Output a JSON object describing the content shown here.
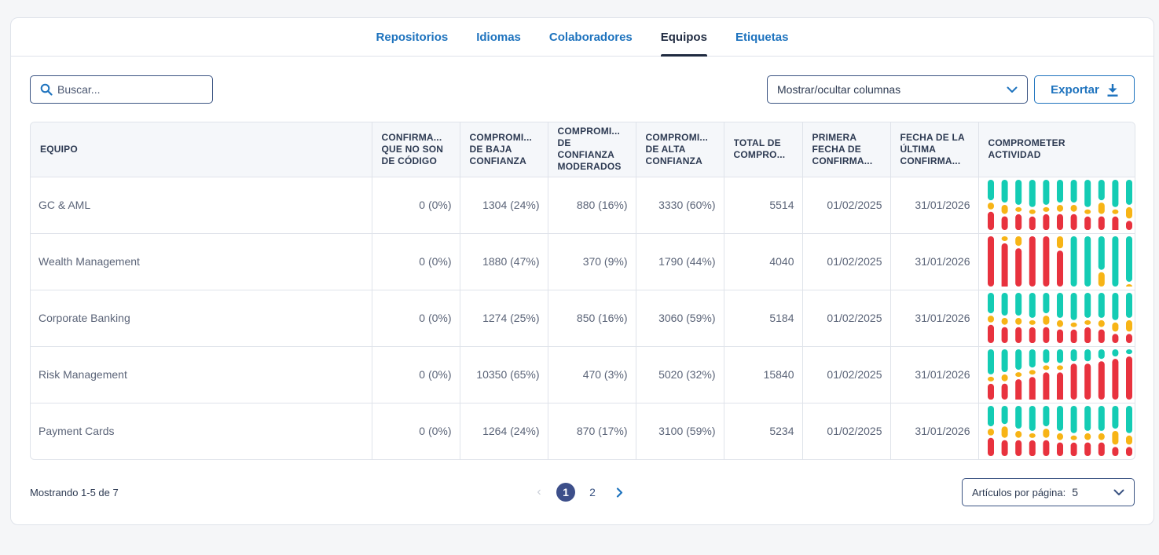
{
  "tabs": [
    {
      "label": "Repositorios"
    },
    {
      "label": "Idiomas"
    },
    {
      "label": "Colaboradores"
    },
    {
      "label": "Equipos",
      "active": true
    },
    {
      "label": "Etiquetas"
    }
  ],
  "search": {
    "placeholder": "Buscar..."
  },
  "columns_select": {
    "label": "Mostrar/ocultar columnas"
  },
  "export": {
    "label": "Exportar"
  },
  "table": {
    "headers": [
      [
        "EQUIPO"
      ],
      [
        "CONFIRMA...",
        "QUE NO SON",
        "DE CÓDIGO"
      ],
      [
        "COMPROMI...",
        "DE BAJA",
        "CONFIANZA"
      ],
      [
        "COMPROMI...",
        "DE",
        "CONFIANZA",
        "MODERADOS"
      ],
      [
        "COMPROMI...",
        "DE ALTA",
        "CONFIANZA"
      ],
      [
        "TOTAL DE",
        "COMPRO..."
      ],
      [
        "PRIMERA",
        "FECHA DE",
        "CONFIRMA..."
      ],
      [
        "FECHA DE LA",
        "ÚLTIMA",
        "CONFIRMA..."
      ],
      [
        "COMPROMETER",
        "ACTIVIDAD"
      ]
    ],
    "rows": [
      {
        "team": "GC & AML",
        "non_code": "0 (0%)",
        "low": "1304 (24%)",
        "moderate": "880 (16%)",
        "high": "3330 (60%)",
        "total": "5514",
        "first": "01/02/2025",
        "last": "31/01/2026",
        "activity": [
          [
            0.45,
            0.15,
            0.4
          ],
          [
            0.5,
            0.2,
            0.3
          ],
          [
            0.55,
            0.1,
            0.35
          ],
          [
            0.6,
            0.1,
            0.3
          ],
          [
            0.55,
            0.1,
            0.35
          ],
          [
            0.5,
            0.15,
            0.35
          ],
          [
            0.5,
            0.15,
            0.35
          ],
          [
            0.6,
            0.1,
            0.3
          ],
          [
            0.45,
            0.25,
            0.3
          ],
          [
            0.6,
            0.05,
            0.35
          ],
          [
            0.55,
            0.25,
            0.2
          ]
        ]
      },
      {
        "team": "Wealth Management",
        "non_code": "0 (0%)",
        "low": "1880 (47%)",
        "moderate": "370 (9%)",
        "high": "1790 (44%)",
        "total": "4040",
        "first": "01/02/2025",
        "last": "31/01/2026",
        "activity": [
          [
            0.0,
            0.0,
            1.0
          ],
          [
            0.0,
            0.05,
            0.95
          ],
          [
            0.0,
            0.2,
            0.8
          ],
          [
            0.0,
            0.0,
            1.0
          ],
          [
            0.0,
            0.0,
            1.0
          ],
          [
            0.0,
            0.25,
            0.75
          ],
          [
            1.0,
            0.0,
            0.0
          ],
          [
            1.0,
            0.0,
            0.0
          ],
          [
            0.7,
            0.3,
            0.0
          ],
          [
            1.0,
            0.0,
            0.0
          ],
          [
            0.95,
            0.05,
            0.0
          ]
        ]
      },
      {
        "team": "Corporate Banking",
        "non_code": "0 (0%)",
        "low": "1274 (25%)",
        "moderate": "850 (16%)",
        "high": "3060 (59%)",
        "total": "5184",
        "first": "01/02/2025",
        "last": "31/01/2026",
        "activity": [
          [
            0.45,
            0.15,
            0.4
          ],
          [
            0.5,
            0.15,
            0.35
          ],
          [
            0.5,
            0.15,
            0.35
          ],
          [
            0.55,
            0.1,
            0.35
          ],
          [
            0.45,
            0.2,
            0.35
          ],
          [
            0.55,
            0.15,
            0.3
          ],
          [
            0.6,
            0.1,
            0.3
          ],
          [
            0.55,
            0.1,
            0.35
          ],
          [
            0.55,
            0.15,
            0.3
          ],
          [
            0.6,
            0.2,
            0.2
          ],
          [
            0.55,
            0.25,
            0.2
          ]
        ]
      },
      {
        "team": "Risk Management",
        "non_code": "0 (0%)",
        "low": "10350 (65%)",
        "moderate": "470 (3%)",
        "high": "5020 (32%)",
        "total": "15840",
        "first": "01/02/2025",
        "last": "31/01/2026",
        "activity": [
          [
            0.55,
            0.1,
            0.35
          ],
          [
            0.5,
            0.15,
            0.35
          ],
          [
            0.45,
            0.05,
            0.5
          ],
          [
            0.4,
            0.05,
            0.55
          ],
          [
            0.3,
            0.05,
            0.65
          ],
          [
            0.3,
            0.05,
            0.65
          ],
          [
            0.25,
            0.0,
            0.75
          ],
          [
            0.25,
            0.0,
            0.75
          ],
          [
            0.2,
            0.0,
            0.8
          ],
          [
            0.15,
            0.0,
            0.85
          ],
          [
            0.1,
            0.0,
            0.9
          ]
        ]
      },
      {
        "team": "Payment Cards",
        "non_code": "0 (0%)",
        "low": "1264 (24%)",
        "moderate": "870 (17%)",
        "high": "3100 (59%)",
        "total": "5234",
        "first": "01/02/2025",
        "last": "31/01/2026",
        "activity": [
          [
            0.45,
            0.15,
            0.4
          ],
          [
            0.4,
            0.25,
            0.35
          ],
          [
            0.5,
            0.15,
            0.35
          ],
          [
            0.55,
            0.1,
            0.35
          ],
          [
            0.45,
            0.2,
            0.35
          ],
          [
            0.55,
            0.15,
            0.3
          ],
          [
            0.6,
            0.1,
            0.3
          ],
          [
            0.55,
            0.15,
            0.3
          ],
          [
            0.55,
            0.15,
            0.3
          ],
          [
            0.5,
            0.3,
            0.2
          ],
          [
            0.6,
            0.2,
            0.2
          ]
        ]
      }
    ]
  },
  "activity_colors": {
    "high": "#14ccb4",
    "moderate": "#f7b416",
    "low": "#e8323e"
  },
  "footer": {
    "showing": "Mostrando 1-5 de 7"
  },
  "pagination": {
    "pages": [
      "1",
      "2"
    ],
    "current": "1"
  },
  "per_page": {
    "label": "Artículos por página:",
    "value": "5"
  }
}
